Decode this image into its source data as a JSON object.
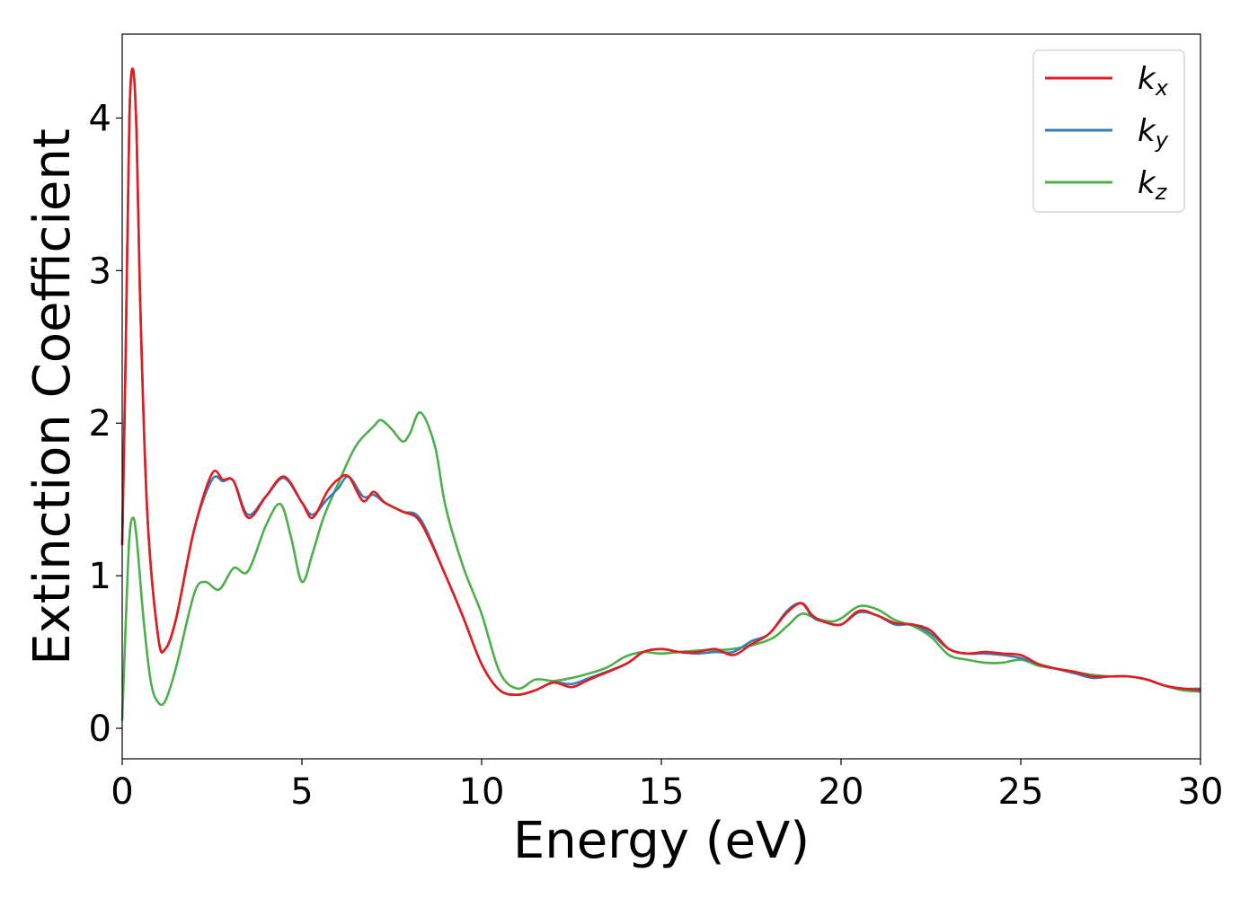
{
  "chart_data": {
    "type": "line",
    "title": "",
    "xlabel": "Energy (eV)",
    "ylabel": "Extinction Coefficient",
    "xlim": [
      0,
      30
    ],
    "ylim": [
      -0.2,
      4.55
    ],
    "xticks": [
      0,
      5,
      10,
      15,
      20,
      25,
      30
    ],
    "xtick_labels": [
      "0",
      "5",
      "10",
      "15",
      "20",
      "25",
      "30"
    ],
    "yticks": [
      0,
      1,
      2,
      3,
      4
    ],
    "ytick_labels": [
      "0",
      "1",
      "2",
      "3",
      "4"
    ],
    "grid": false,
    "legend_position": "top-right",
    "series": [
      {
        "name": "k",
        "sub": "x",
        "color": "#e41a1c",
        "x": [
          0,
          0.1,
          0.2,
          0.3,
          0.4,
          0.5,
          0.7,
          1.0,
          1.2,
          1.5,
          2.0,
          2.5,
          2.8,
          3.1,
          3.5,
          4.0,
          4.5,
          5.0,
          5.3,
          5.7,
          6.0,
          6.3,
          6.7,
          7.0,
          7.3,
          7.8,
          8.3,
          9.0,
          9.5,
          10.0,
          10.5,
          11.0,
          11.5,
          12.0,
          12.5,
          13.0,
          14.0,
          14.5,
          15.0,
          15.5,
          16.0,
          16.5,
          17.0,
          17.5,
          18.0,
          18.5,
          18.9,
          19.2,
          19.5,
          20.0,
          20.5,
          21.0,
          21.5,
          22.0,
          22.5,
          23.0,
          23.5,
          24.0,
          24.5,
          25.0,
          25.5,
          26.0,
          26.5,
          27.0,
          27.5,
          28.0,
          28.5,
          29.0,
          29.5,
          30.0
        ],
        "y": [
          1.2,
          2.5,
          4.0,
          4.32,
          3.9,
          2.8,
          1.4,
          0.6,
          0.52,
          0.72,
          1.3,
          1.67,
          1.63,
          1.62,
          1.38,
          1.52,
          1.65,
          1.48,
          1.38,
          1.55,
          1.63,
          1.65,
          1.49,
          1.55,
          1.48,
          1.42,
          1.35,
          1.0,
          0.72,
          0.42,
          0.25,
          0.22,
          0.25,
          0.3,
          0.27,
          0.32,
          0.42,
          0.5,
          0.52,
          0.5,
          0.5,
          0.52,
          0.48,
          0.55,
          0.62,
          0.76,
          0.82,
          0.74,
          0.7,
          0.68,
          0.77,
          0.74,
          0.69,
          0.68,
          0.64,
          0.52,
          0.49,
          0.5,
          0.49,
          0.48,
          0.42,
          0.39,
          0.37,
          0.34,
          0.34,
          0.34,
          0.32,
          0.28,
          0.26,
          0.25
        ]
      },
      {
        "name": "k",
        "sub": "y",
        "color": "#377eb8",
        "x": [
          0,
          0.1,
          0.2,
          0.3,
          0.4,
          0.5,
          0.7,
          1.0,
          1.2,
          1.5,
          2.0,
          2.5,
          2.8,
          3.1,
          3.5,
          4.0,
          4.5,
          5.0,
          5.3,
          5.7,
          6.0,
          6.3,
          6.7,
          7.0,
          7.3,
          7.8,
          8.3,
          9.0,
          9.5,
          10.0,
          10.5,
          11.0,
          11.5,
          12.0,
          12.5,
          13.0,
          14.0,
          14.5,
          15.0,
          15.5,
          16.0,
          16.5,
          17.0,
          17.5,
          18.0,
          18.5,
          18.9,
          19.2,
          19.5,
          20.0,
          20.5,
          21.0,
          21.5,
          22.0,
          22.5,
          23.0,
          23.5,
          24.0,
          24.5,
          25.0,
          25.5,
          26.0,
          26.5,
          27.0,
          27.5,
          28.0,
          28.5,
          29.0,
          29.5,
          30.0
        ],
        "y": [
          1.2,
          2.5,
          4.0,
          4.32,
          3.9,
          2.8,
          1.4,
          0.6,
          0.52,
          0.72,
          1.3,
          1.63,
          1.62,
          1.62,
          1.4,
          1.52,
          1.64,
          1.48,
          1.4,
          1.5,
          1.57,
          1.65,
          1.52,
          1.53,
          1.48,
          1.42,
          1.37,
          1.0,
          0.72,
          0.42,
          0.25,
          0.22,
          0.25,
          0.3,
          0.29,
          0.33,
          0.42,
          0.5,
          0.52,
          0.5,
          0.49,
          0.5,
          0.5,
          0.57,
          0.62,
          0.77,
          0.82,
          0.73,
          0.7,
          0.68,
          0.76,
          0.74,
          0.68,
          0.68,
          0.62,
          0.52,
          0.49,
          0.49,
          0.48,
          0.46,
          0.42,
          0.39,
          0.36,
          0.33,
          0.34,
          0.34,
          0.32,
          0.28,
          0.26,
          0.26
        ]
      },
      {
        "name": "k",
        "sub": "z",
        "color": "#4daf4a",
        "x": [
          0,
          0.1,
          0.2,
          0.3,
          0.4,
          0.6,
          0.8,
          1.0,
          1.2,
          1.5,
          2.0,
          2.3,
          2.7,
          3.1,
          3.5,
          4.0,
          4.4,
          4.7,
          5.0,
          5.3,
          5.6,
          6.0,
          6.5,
          7.0,
          7.2,
          7.5,
          7.8,
          8.0,
          8.3,
          8.7,
          9.0,
          9.5,
          10.0,
          10.5,
          11.0,
          11.5,
          12.0,
          12.5,
          13.0,
          13.5,
          14.0,
          14.5,
          15.0,
          16.0,
          17.0,
          18.0,
          18.5,
          18.9,
          19.3,
          19.7,
          20.0,
          20.5,
          21.0,
          21.5,
          22.0,
          22.5,
          23.0,
          23.5,
          24.0,
          24.5,
          25.0,
          25.5,
          26.0,
          26.5,
          27.0,
          27.5,
          28.0,
          28.5,
          29.0,
          29.5,
          30.0
        ],
        "y": [
          0.05,
          0.7,
          1.25,
          1.38,
          1.25,
          0.7,
          0.3,
          0.17,
          0.18,
          0.4,
          0.88,
          0.96,
          0.91,
          1.05,
          1.03,
          1.33,
          1.47,
          1.25,
          0.96,
          1.15,
          1.38,
          1.6,
          1.85,
          1.98,
          2.02,
          1.96,
          1.88,
          1.93,
          2.07,
          1.85,
          1.45,
          1.05,
          0.75,
          0.37,
          0.26,
          0.32,
          0.31,
          0.33,
          0.36,
          0.4,
          0.47,
          0.5,
          0.49,
          0.51,
          0.52,
          0.58,
          0.67,
          0.75,
          0.72,
          0.7,
          0.72,
          0.8,
          0.78,
          0.71,
          0.67,
          0.6,
          0.48,
          0.45,
          0.43,
          0.43,
          0.45,
          0.41,
          0.39,
          0.37,
          0.35,
          0.34,
          0.34,
          0.32,
          0.28,
          0.25,
          0.24
        ]
      }
    ]
  }
}
